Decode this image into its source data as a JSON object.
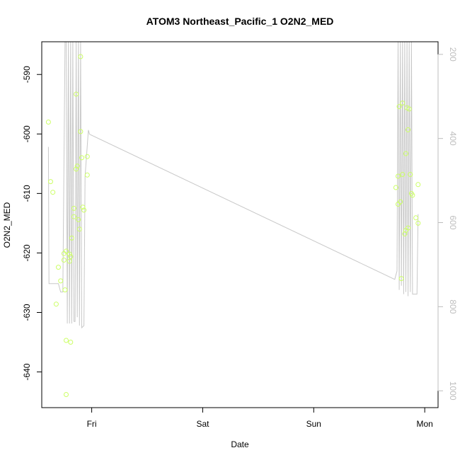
{
  "chart_data": {
    "type": "scatter",
    "title": "ATOM3 Northeast_Pacific_1 O2N2_MED",
    "xlabel": "Date",
    "ylabel": "O2N2_MED",
    "x_unit": "days since Thu 00:00",
    "x_ticks": [
      {
        "value": 1.0,
        "label": "Fri"
      },
      {
        "value": 2.0,
        "label": "Sat"
      },
      {
        "value": 3.0,
        "label": "Sun"
      },
      {
        "value": 4.0,
        "label": "Mon"
      }
    ],
    "xlim": [
      0.55,
      4.12
    ],
    "ylim": [
      -646.0,
      -584.5
    ],
    "y_ticks": [
      -590,
      -600,
      -610,
      -620,
      -630,
      -640
    ],
    "y2lim": [
      1040,
      170
    ],
    "y2_ticks": [
      200,
      400,
      600,
      800,
      1000
    ],
    "point_color": "#ccff66",
    "line_color": "#c8c8c8",
    "points": [
      [
        0.61,
        -598.0
      ],
      [
        0.63,
        -608.0
      ],
      [
        0.65,
        -609.8
      ],
      [
        0.68,
        -628.6
      ],
      [
        0.7,
        -622.4
      ],
      [
        0.72,
        -624.7
      ],
      [
        0.75,
        -620.1
      ],
      [
        0.75,
        -621.2
      ],
      [
        0.76,
        -626.2
      ],
      [
        0.77,
        -619.7
      ],
      [
        0.77,
        -634.7
      ],
      [
        0.77,
        -643.8
      ],
      [
        0.8,
        -620.2
      ],
      [
        0.8,
        -621.4
      ],
      [
        0.81,
        -620.6
      ],
      [
        0.81,
        -635.0
      ],
      [
        0.82,
        -617.5
      ],
      [
        0.84,
        -612.5
      ],
      [
        0.84,
        -613.9
      ],
      [
        0.86,
        -605.9
      ],
      [
        0.86,
        -593.3
      ],
      [
        0.87,
        -605.4
      ],
      [
        0.88,
        -614.4
      ],
      [
        0.89,
        -616.0
      ],
      [
        0.9,
        -587.0
      ],
      [
        0.9,
        -599.6
      ],
      [
        0.91,
        -604.0
      ],
      [
        0.92,
        -612.3
      ],
      [
        0.93,
        -612.8
      ],
      [
        0.96,
        -603.8
      ],
      [
        0.96,
        -606.9
      ],
      [
        3.74,
        -609.0
      ],
      [
        3.76,
        -611.8
      ],
      [
        3.76,
        -607.1
      ],
      [
        3.77,
        -595.4
      ],
      [
        3.78,
        -611.4
      ],
      [
        3.79,
        -624.3
      ],
      [
        3.8,
        -606.8
      ],
      [
        3.8,
        -594.8
      ],
      [
        3.82,
        -616.8
      ],
      [
        3.83,
        -616.2
      ],
      [
        3.83,
        -603.3
      ],
      [
        3.84,
        -595.6
      ],
      [
        3.85,
        -615.8
      ],
      [
        3.85,
        -599.3
      ],
      [
        3.86,
        -595.8
      ],
      [
        3.87,
        -606.8
      ],
      [
        3.88,
        -610.0
      ],
      [
        3.89,
        -610.3
      ],
      [
        3.92,
        -614.1
      ],
      [
        3.94,
        -615.0
      ],
      [
        3.94,
        -608.5
      ]
    ],
    "line": [
      [
        0.61,
        420
      ],
      [
        0.615,
        745
      ],
      [
        0.7,
        745
      ],
      [
        0.72,
        765
      ],
      [
        0.74,
        765
      ],
      [
        0.76,
        170
      ],
      [
        0.77,
        170
      ],
      [
        0.78,
        840
      ],
      [
        0.79,
        170
      ],
      [
        0.8,
        840
      ],
      [
        0.81,
        170
      ],
      [
        0.82,
        840
      ],
      [
        0.83,
        170
      ],
      [
        0.84,
        835
      ],
      [
        0.85,
        835
      ],
      [
        0.86,
        170
      ],
      [
        0.87,
        825
      ],
      [
        0.88,
        170
      ],
      [
        0.89,
        845
      ],
      [
        0.9,
        170
      ],
      [
        0.91,
        850
      ],
      [
        0.93,
        845
      ],
      [
        0.94,
        490
      ],
      [
        0.97,
        380
      ],
      [
        0.98,
        390
      ],
      [
        3.73,
        735
      ],
      [
        3.75,
        715
      ],
      [
        3.76,
        170
      ],
      [
        3.77,
        760
      ],
      [
        3.78,
        170
      ],
      [
        3.79,
        750
      ],
      [
        3.8,
        170
      ],
      [
        3.81,
        770
      ],
      [
        3.82,
        170
      ],
      [
        3.83,
        765
      ],
      [
        3.84,
        170
      ],
      [
        3.85,
        775
      ],
      [
        3.86,
        170
      ],
      [
        3.87,
        765
      ],
      [
        3.88,
        170
      ],
      [
        3.89,
        770
      ],
      [
        3.9,
        770
      ],
      [
        3.91,
        770
      ],
      [
        3.92,
        770
      ],
      [
        3.93,
        770
      ],
      [
        3.94,
        580
      ]
    ]
  }
}
